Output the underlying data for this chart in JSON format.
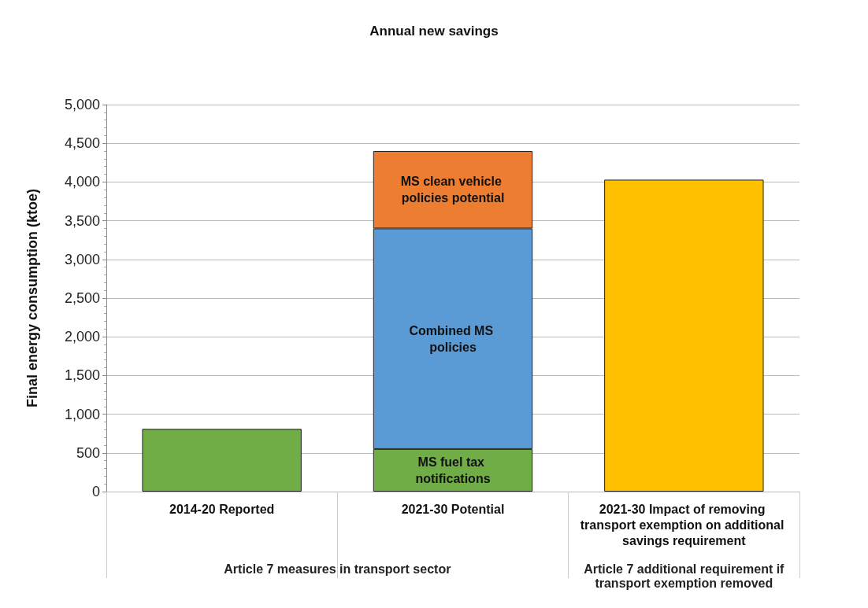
{
  "chart_data": {
    "type": "bar",
    "title": "Annual new savings",
    "ylabel": "Final energy consumption (ktoe)",
    "categories": [
      "2014-20 Reported",
      "2021-30 Potential",
      "2021-30 Impact of removing transport exemption on additional savings requirement"
    ],
    "stacked": true,
    "series": [
      {
        "color": "#70ad47",
        "values": [
          810,
          null,
          null
        ]
      },
      {
        "name": "MS fuel tax notifications",
        "color": "#70ad47",
        "values": [
          null,
          550,
          null
        ]
      },
      {
        "name": "Combined MS policies",
        "color": "#5b9bd5",
        "values": [
          null,
          2850,
          null
        ]
      },
      {
        "name": "MS clean vehicle policies potential",
        "color": "#ed7d31",
        "values": [
          null,
          1000,
          null
        ]
      },
      {
        "color": "#ffc000",
        "values": [
          null,
          null,
          4030
        ]
      }
    ],
    "ylim": [
      0,
      5000
    ],
    "yticks": [
      0,
      500,
      {
        "value": 1000,
        "label": "1,000"
      },
      {
        "value": 1500,
        "label": "1,500"
      },
      {
        "value": 2000,
        "label": "2,000"
      },
      {
        "value": 2500,
        "label": "2,500"
      },
      {
        "value": 3000,
        "label": "3,000"
      },
      {
        "value": 3500,
        "label": "3,500"
      },
      {
        "value": 4000,
        "label": "4,000"
      },
      {
        "value": 4500,
        "label": "4,500"
      },
      {
        "value": 5000,
        "label": "5,000"
      }
    ],
    "grid": "y",
    "annotations": [
      "Article 7 measures in transport sector",
      "Article 7 additional requirement if transport exemption removed"
    ]
  }
}
